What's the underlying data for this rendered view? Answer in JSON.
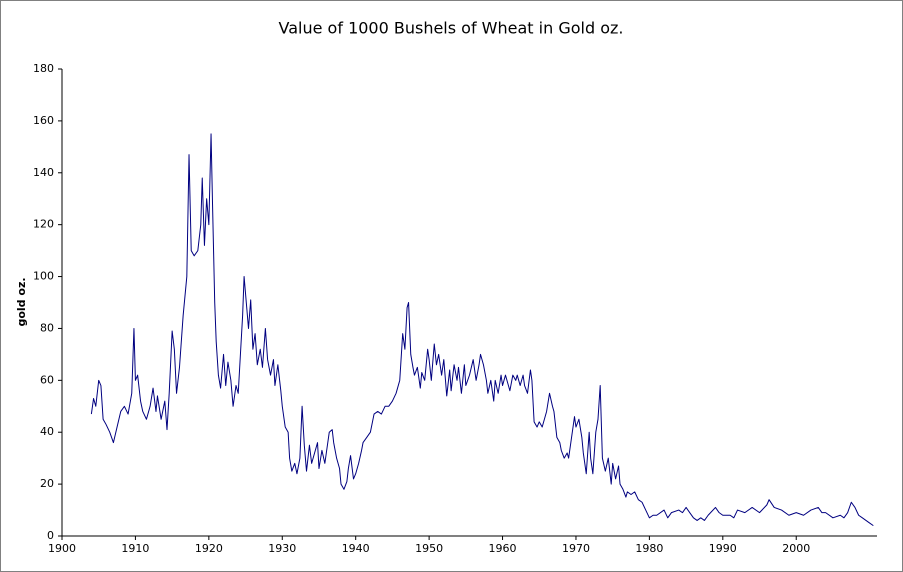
{
  "chart_data": {
    "type": "line",
    "title": "Value of 1000 Bushels of Wheat in Gold oz.",
    "ylabel": "gold oz.",
    "xlim": [
      1900,
      2011
    ],
    "xticks": [
      1900,
      1910,
      1920,
      1930,
      1940,
      1950,
      1960,
      1970,
      1980,
      1990,
      2000
    ],
    "ylim": [
      0,
      180
    ],
    "yticks": [
      0,
      20,
      40,
      60,
      80,
      100,
      120,
      140,
      160,
      180
    ],
    "grid": false,
    "series": [
      {
        "name": "gold oz.",
        "color": "#000080",
        "x": [
          1904,
          1904.3,
          1904.6,
          1905,
          1905.3,
          1905.6,
          1906,
          1906.5,
          1907,
          1907.5,
          1908,
          1908.5,
          1909,
          1909.5,
          1909.8,
          1910,
          1910.3,
          1910.7,
          1911,
          1911.5,
          1912,
          1912.4,
          1912.8,
          1913,
          1913.5,
          1914,
          1914.3,
          1914.6,
          1915,
          1915.3,
          1915.6,
          1916,
          1916.5,
          1917,
          1917.3,
          1917.6,
          1918,
          1918.5,
          1918.9,
          1919.1,
          1919.4,
          1919.7,
          1920,
          1920.3,
          1920.5,
          1920.8,
          1921,
          1921.3,
          1921.6,
          1922,
          1922.3,
          1922.6,
          1923,
          1923.3,
          1923.7,
          1924,
          1924.3,
          1924.6,
          1924.8,
          1925.1,
          1925.4,
          1925.7,
          1926,
          1926.3,
          1926.6,
          1927,
          1927.3,
          1927.7,
          1928,
          1928.4,
          1928.8,
          1929,
          1929.4,
          1929.8,
          1930,
          1930.4,
          1930.8,
          1931,
          1931.3,
          1931.7,
          1932,
          1932.4,
          1932.7,
          1933,
          1933.3,
          1933.7,
          1934,
          1934.4,
          1934.8,
          1935,
          1935.4,
          1935.8,
          1936,
          1936.4,
          1936.8,
          1937,
          1937.4,
          1937.8,
          1938,
          1938.4,
          1938.8,
          1939,
          1939.3,
          1939.7,
          1940,
          1940.4,
          1940.8,
          1941,
          1941.5,
          1942,
          1942.5,
          1943,
          1943.5,
          1944,
          1944.5,
          1945,
          1945.5,
          1946,
          1946.4,
          1946.7,
          1947,
          1947.2,
          1947.5,
          1947.8,
          1948,
          1948.4,
          1948.8,
          1949,
          1949.4,
          1949.8,
          1950,
          1950.3,
          1950.7,
          1951,
          1951.3,
          1951.7,
          1952,
          1952.4,
          1952.8,
          1953,
          1953.4,
          1953.8,
          1954,
          1954.4,
          1954.8,
          1955,
          1955.5,
          1956,
          1956.4,
          1956.8,
          1957,
          1957.4,
          1957.8,
          1958,
          1958.4,
          1958.8,
          1959,
          1959.4,
          1959.8,
          1960,
          1960.4,
          1960.8,
          1961,
          1961.4,
          1961.8,
          1962,
          1962.4,
          1962.8,
          1963,
          1963.4,
          1963.8,
          1964,
          1964.3,
          1964.7,
          1965,
          1965.4,
          1965.8,
          1966,
          1966.4,
          1966.8,
          1967,
          1967.4,
          1967.8,
          1968,
          1968.4,
          1968.8,
          1969,
          1969.4,
          1969.8,
          1970,
          1970.4,
          1970.8,
          1971,
          1971.4,
          1971.8,
          1972,
          1972.3,
          1972.7,
          1973,
          1973.3,
          1973.6,
          1974,
          1974.4,
          1974.8,
          1975,
          1975.4,
          1975.8,
          1976,
          1976.4,
          1976.8,
          1977,
          1977.5,
          1978,
          1978.5,
          1979,
          1979.5,
          1980,
          1980.5,
          1981,
          1982,
          1982.5,
          1983,
          1984,
          1984.5,
          1985,
          1985.5,
          1986,
          1986.5,
          1987,
          1987.5,
          1988,
          1989,
          1989.5,
          1990,
          1991,
          1991.5,
          1992,
          1993,
          1994,
          1995,
          1996,
          1996.3,
          1997,
          1998,
          1999,
          2000,
          2001,
          2002,
          2003,
          2003.5,
          2004,
          2005,
          2006,
          2006.5,
          2007,
          2007.5,
          2008,
          2008.5,
          2009,
          2009.5,
          2010,
          2010.5
        ],
        "values": [
          47,
          53,
          50,
          60,
          58,
          45,
          43,
          40,
          36,
          42,
          48,
          50,
          47,
          55,
          80,
          60,
          62,
          52,
          48,
          45,
          50,
          57,
          48,
          54,
          45,
          52,
          41,
          55,
          79,
          72,
          55,
          65,
          85,
          100,
          147,
          110,
          108,
          110,
          120,
          138,
          112,
          130,
          120,
          155,
          128,
          90,
          75,
          62,
          57,
          70,
          58,
          67,
          60,
          50,
          58,
          55,
          70,
          85,
          100,
          90,
          80,
          91,
          72,
          78,
          66,
          72,
          65,
          80,
          68,
          62,
          68,
          58,
          66,
          56,
          50,
          42,
          40,
          30,
          25,
          28,
          24,
          30,
          50,
          35,
          25,
          35,
          28,
          32,
          36,
          26,
          33,
          28,
          32,
          40,
          41,
          36,
          30,
          26,
          20,
          18,
          21,
          26,
          31,
          22,
          24,
          28,
          33,
          36,
          38,
          40,
          47,
          48,
          47,
          50,
          50,
          52,
          55,
          60,
          78,
          72,
          88,
          90,
          70,
          65,
          62,
          65,
          57,
          63,
          60,
          72,
          68,
          60,
          74,
          66,
          70,
          62,
          68,
          54,
          64,
          56,
          66,
          60,
          65,
          55,
          66,
          58,
          62,
          68,
          60,
          66,
          70,
          66,
          60,
          55,
          60,
          52,
          60,
          55,
          62,
          58,
          62,
          58,
          56,
          62,
          60,
          62,
          58,
          62,
          58,
          55,
          64,
          60,
          44,
          42,
          44,
          42,
          46,
          48,
          55,
          50,
          48,
          38,
          36,
          33,
          30,
          32,
          30,
          38,
          46,
          42,
          45,
          38,
          32,
          24,
          40,
          30,
          24,
          40,
          45,
          58,
          30,
          25,
          30,
          20,
          28,
          22,
          27,
          20,
          18,
          15,
          17,
          16,
          17,
          14,
          13,
          10,
          7,
          8,
          8,
          10,
          7,
          9,
          10,
          9,
          11,
          9,
          7,
          6,
          7,
          6,
          8,
          11,
          9,
          8,
          8,
          7,
          10,
          9,
          11,
          9,
          12,
          14,
          11,
          10,
          8,
          9,
          8,
          10,
          11,
          9,
          9,
          7,
          8,
          7,
          9,
          13,
          11,
          8,
          7,
          6,
          5,
          4
        ]
      }
    ]
  }
}
